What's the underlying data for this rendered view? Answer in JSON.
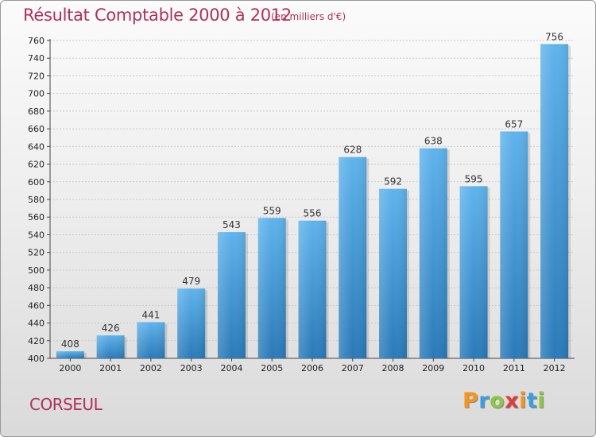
{
  "header": {
    "title": "Résultat Comptable 2000 à 2012",
    "subtitle": "(en milliers d'€)"
  },
  "footer": {
    "city": "CORSEUL",
    "logo_letters": [
      {
        "ch": "P",
        "color": "#f7941d"
      },
      {
        "ch": "r",
        "color": "#3aa0dc"
      },
      {
        "ch": "o",
        "color": "#8dc63f"
      },
      {
        "ch": "x",
        "color": "#e53935"
      },
      {
        "ch": "i",
        "color": "#f7941d"
      },
      {
        "ch": "t",
        "color": "#3aa0dc"
      },
      {
        "ch": "i",
        "color": "#8dc63f"
      }
    ]
  },
  "chart_data": {
    "type": "bar",
    "title": "Résultat Comptable 2000 à 2012",
    "subtitle": "(en milliers d'€)",
    "categories": [
      "2000",
      "2001",
      "2002",
      "2003",
      "2004",
      "2005",
      "2006",
      "2007",
      "2008",
      "2009",
      "2010",
      "2011",
      "2012"
    ],
    "values": [
      408,
      426,
      441,
      479,
      543,
      559,
      556,
      628,
      592,
      638,
      595,
      657,
      756
    ],
    "ylim": [
      400,
      760
    ],
    "yticks": [
      400,
      420,
      440,
      460,
      480,
      500,
      520,
      540,
      560,
      580,
      600,
      620,
      640,
      660,
      680,
      700,
      720,
      740,
      760
    ],
    "grid": true,
    "bar_color_top": "#5fb3ec",
    "bar_color_bottom": "#2a7ab8"
  }
}
